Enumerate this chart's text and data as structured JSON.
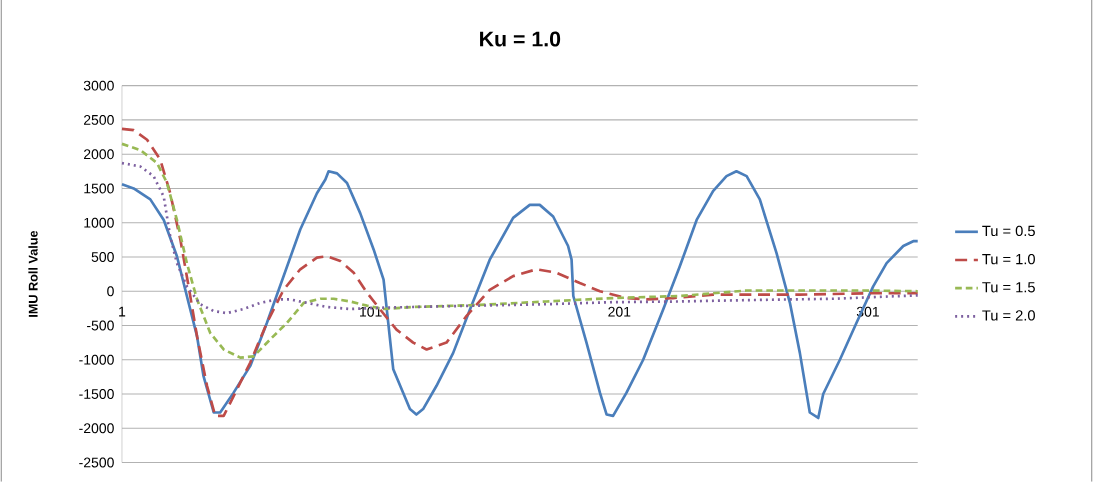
{
  "chart_data": {
    "type": "line",
    "title": "Ku = 1.0",
    "ylabel": "IMU Roll Value",
    "xlim": [
      1,
      321
    ],
    "xticks": [
      1,
      101,
      201,
      301
    ],
    "ylim": [
      -2500,
      3000
    ],
    "yticks": [
      -2500,
      -2000,
      -1500,
      -1000,
      -500,
      0,
      500,
      1000,
      1500,
      2000,
      2500,
      3000
    ],
    "grid": "y",
    "legend": "right",
    "marker": "none",
    "series": [
      {
        "name": "Tu = 0.5",
        "color": "#4a7ebb",
        "line_style": "solid",
        "x": [
          1,
          5.7,
          12.4,
          17.8,
          23.1,
          27.1,
          31.2,
          33.8,
          37.9,
          40.5,
          45.9,
          52.6,
          59.3,
          66,
          72.7,
          79.4,
          82.8,
          84.1,
          87.5,
          91.5,
          96.8,
          102.2,
          106.2,
          110.1,
          116.8,
          119.4,
          122.1,
          127.5,
          134.2,
          140.9,
          148.9,
          158.3,
          165,
          169,
          174.4,
          180.4,
          181.8,
          182.5,
          187.8,
          193.2,
          195.9,
          198.5,
          203.9,
          210.6,
          218.6,
          225.3,
          232.1,
          238.7,
          244.1,
          248.1,
          252.2,
          257.5,
          264.2,
          269.6,
          273.6,
          277.6,
          281,
          283,
          289.7,
          296.4,
          303.1,
          308.5,
          315.2,
          319.2,
          321
        ],
        "values": [
          1560,
          1500,
          1340,
          1040,
          510,
          -70,
          -660,
          -1240,
          -1770,
          -1770,
          -1480,
          -1090,
          -460,
          220,
          900,
          1430,
          1630,
          1750,
          1720,
          1580,
          1140,
          610,
          170,
          -1140,
          -1720,
          -1800,
          -1720,
          -1380,
          -900,
          -270,
          460,
          1070,
          1260,
          1260,
          1090,
          660,
          460,
          -70,
          -750,
          -1480,
          -1800,
          -1820,
          -1480,
          -1000,
          -270,
          360,
          1040,
          1460,
          1680,
          1750,
          1680,
          1340,
          560,
          -170,
          -900,
          -1770,
          -1850,
          -1500,
          -1000,
          -460,
          70,
          410,
          660,
          730,
          730
        ]
      },
      {
        "name": "Tu = 1.0",
        "color": "#be4b48",
        "line_style": "dashed",
        "x": [
          1,
          5.7,
          11.1,
          16.4,
          20.4,
          24.5,
          27.8,
          31.2,
          35.2,
          38.5,
          41.9,
          45.9,
          52.6,
          59.3,
          66,
          72.7,
          79.4,
          83.4,
          88.8,
          94.2,
          99.5,
          104.9,
          111.4,
          118.1,
          123.5,
          131.5,
          139.6,
          148.9,
          158.3,
          167.7,
          175.7,
          185.1,
          193.2,
          203.9,
          212,
          222.7,
          238.7,
          252.2,
          273.6,
          300.4,
          321
        ],
        "values": [
          2370,
          2350,
          2210,
          1920,
          1430,
          750,
          70,
          -660,
          -1380,
          -1820,
          -1820,
          -1530,
          -1040,
          -460,
          20,
          320,
          490,
          510,
          440,
          270,
          -20,
          -270,
          -560,
          -750,
          -850,
          -750,
          -360,
          20,
          220,
          320,
          270,
          120,
          0,
          -100,
          -120,
          -100,
          -50,
          -50,
          -50,
          -30,
          -30
        ]
      },
      {
        "name": "Tu = 1.5",
        "color": "#98b954",
        "line_style": "dashed",
        "x": [
          1,
          8.4,
          15.1,
          19.1,
          23.1,
          27.1,
          31.2,
          36.5,
          41.9,
          48.6,
          54,
          60.7,
          67.4,
          74.1,
          80.8,
          86.1,
          92.8,
          99.5,
          106.2,
          118.1,
          144.9,
          171.7,
          198.5,
          225.3,
          252.2,
          273.6,
          300.4,
          321
        ],
        "values": [
          2150,
          2060,
          1870,
          1580,
          1040,
          410,
          -120,
          -610,
          -850,
          -970,
          -950,
          -700,
          -460,
          -170,
          -110,
          -110,
          -150,
          -210,
          -260,
          -230,
          -200,
          -150,
          -100,
          -70,
          10,
          10,
          10,
          0
        ]
      },
      {
        "name": "Tu = 2.0",
        "color": "#7d60a0",
        "line_style": "dotted",
        "x": [
          1,
          8.4,
          13.7,
          17.8,
          20.4,
          23.1,
          27.1,
          32.5,
          37.9,
          43.2,
          49.9,
          56.6,
          63.3,
          68.7,
          75.4,
          83.4,
          92.8,
          106.2,
          118.1,
          144.9,
          171.7,
          198.5,
          225.3,
          252.2,
          287,
          321
        ],
        "values": [
          1870,
          1820,
          1680,
          1380,
          800,
          410,
          70,
          -190,
          -290,
          -320,
          -260,
          -170,
          -120,
          -120,
          -170,
          -230,
          -260,
          -240,
          -230,
          -210,
          -190,
          -160,
          -150,
          -130,
          -110,
          -60
        ]
      }
    ]
  }
}
